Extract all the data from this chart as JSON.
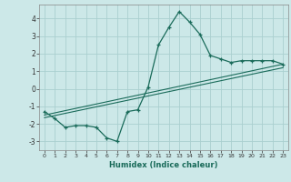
{
  "xlabel": "Humidex (Indice chaleur)",
  "bg_color": "#cce8e8",
  "grid_color": "#aacfcf",
  "line_color": "#1a6b5a",
  "xlim": [
    -0.5,
    23.5
  ],
  "ylim": [
    -3.5,
    4.8
  ],
  "xticks": [
    0,
    1,
    2,
    3,
    4,
    5,
    6,
    7,
    8,
    9,
    10,
    11,
    12,
    13,
    14,
    15,
    16,
    17,
    18,
    19,
    20,
    21,
    22,
    23
  ],
  "yticks": [
    -3,
    -2,
    -1,
    0,
    1,
    2,
    3,
    4
  ],
  "main_x": [
    0,
    1,
    2,
    3,
    4,
    5,
    6,
    7,
    8,
    9,
    10,
    11,
    12,
    13,
    14,
    15,
    16,
    17,
    18,
    19,
    20,
    21,
    22,
    23
  ],
  "main_y": [
    -1.3,
    -1.7,
    -2.2,
    -2.1,
    -2.1,
    -2.2,
    -2.8,
    -3.0,
    -1.3,
    -1.2,
    0.1,
    2.5,
    3.5,
    4.4,
    3.8,
    3.1,
    1.9,
    1.7,
    1.5,
    1.6,
    1.6,
    1.6,
    1.6,
    1.4
  ],
  "reg_line1_x": [
    0,
    23
  ],
  "reg_line1_y": [
    -1.5,
    1.4
  ],
  "reg_line2_x": [
    0,
    23
  ],
  "reg_line2_y": [
    -1.65,
    1.2
  ]
}
